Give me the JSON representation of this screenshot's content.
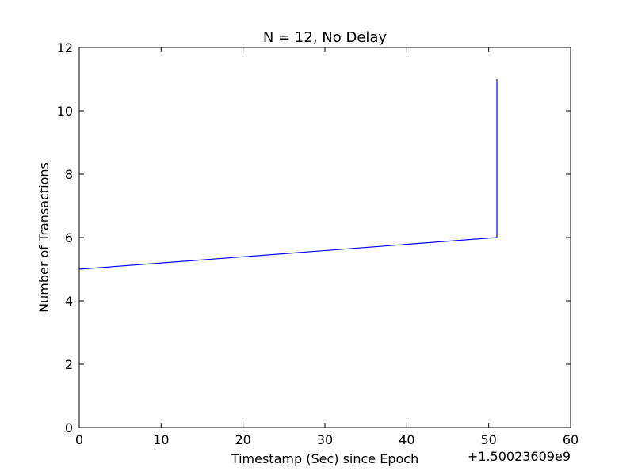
{
  "chart_data": {
    "type": "line",
    "title": "N = 12, No Delay",
    "xlabel": "Timestamp (Sec) since Epoch",
    "ylabel": "Number of Transactions",
    "x_offset_label": "+1.50023609e9",
    "xlim": [
      0,
      60
    ],
    "ylim": [
      0,
      12
    ],
    "xticks": [
      0,
      10,
      20,
      30,
      40,
      50,
      60
    ],
    "yticks": [
      0,
      2,
      4,
      6,
      8,
      10,
      12
    ],
    "grid": false,
    "series": [
      {
        "color": "#0000ff",
        "x": [
          0,
          51,
          51
        ],
        "y": [
          5,
          6,
          11
        ]
      }
    ]
  }
}
